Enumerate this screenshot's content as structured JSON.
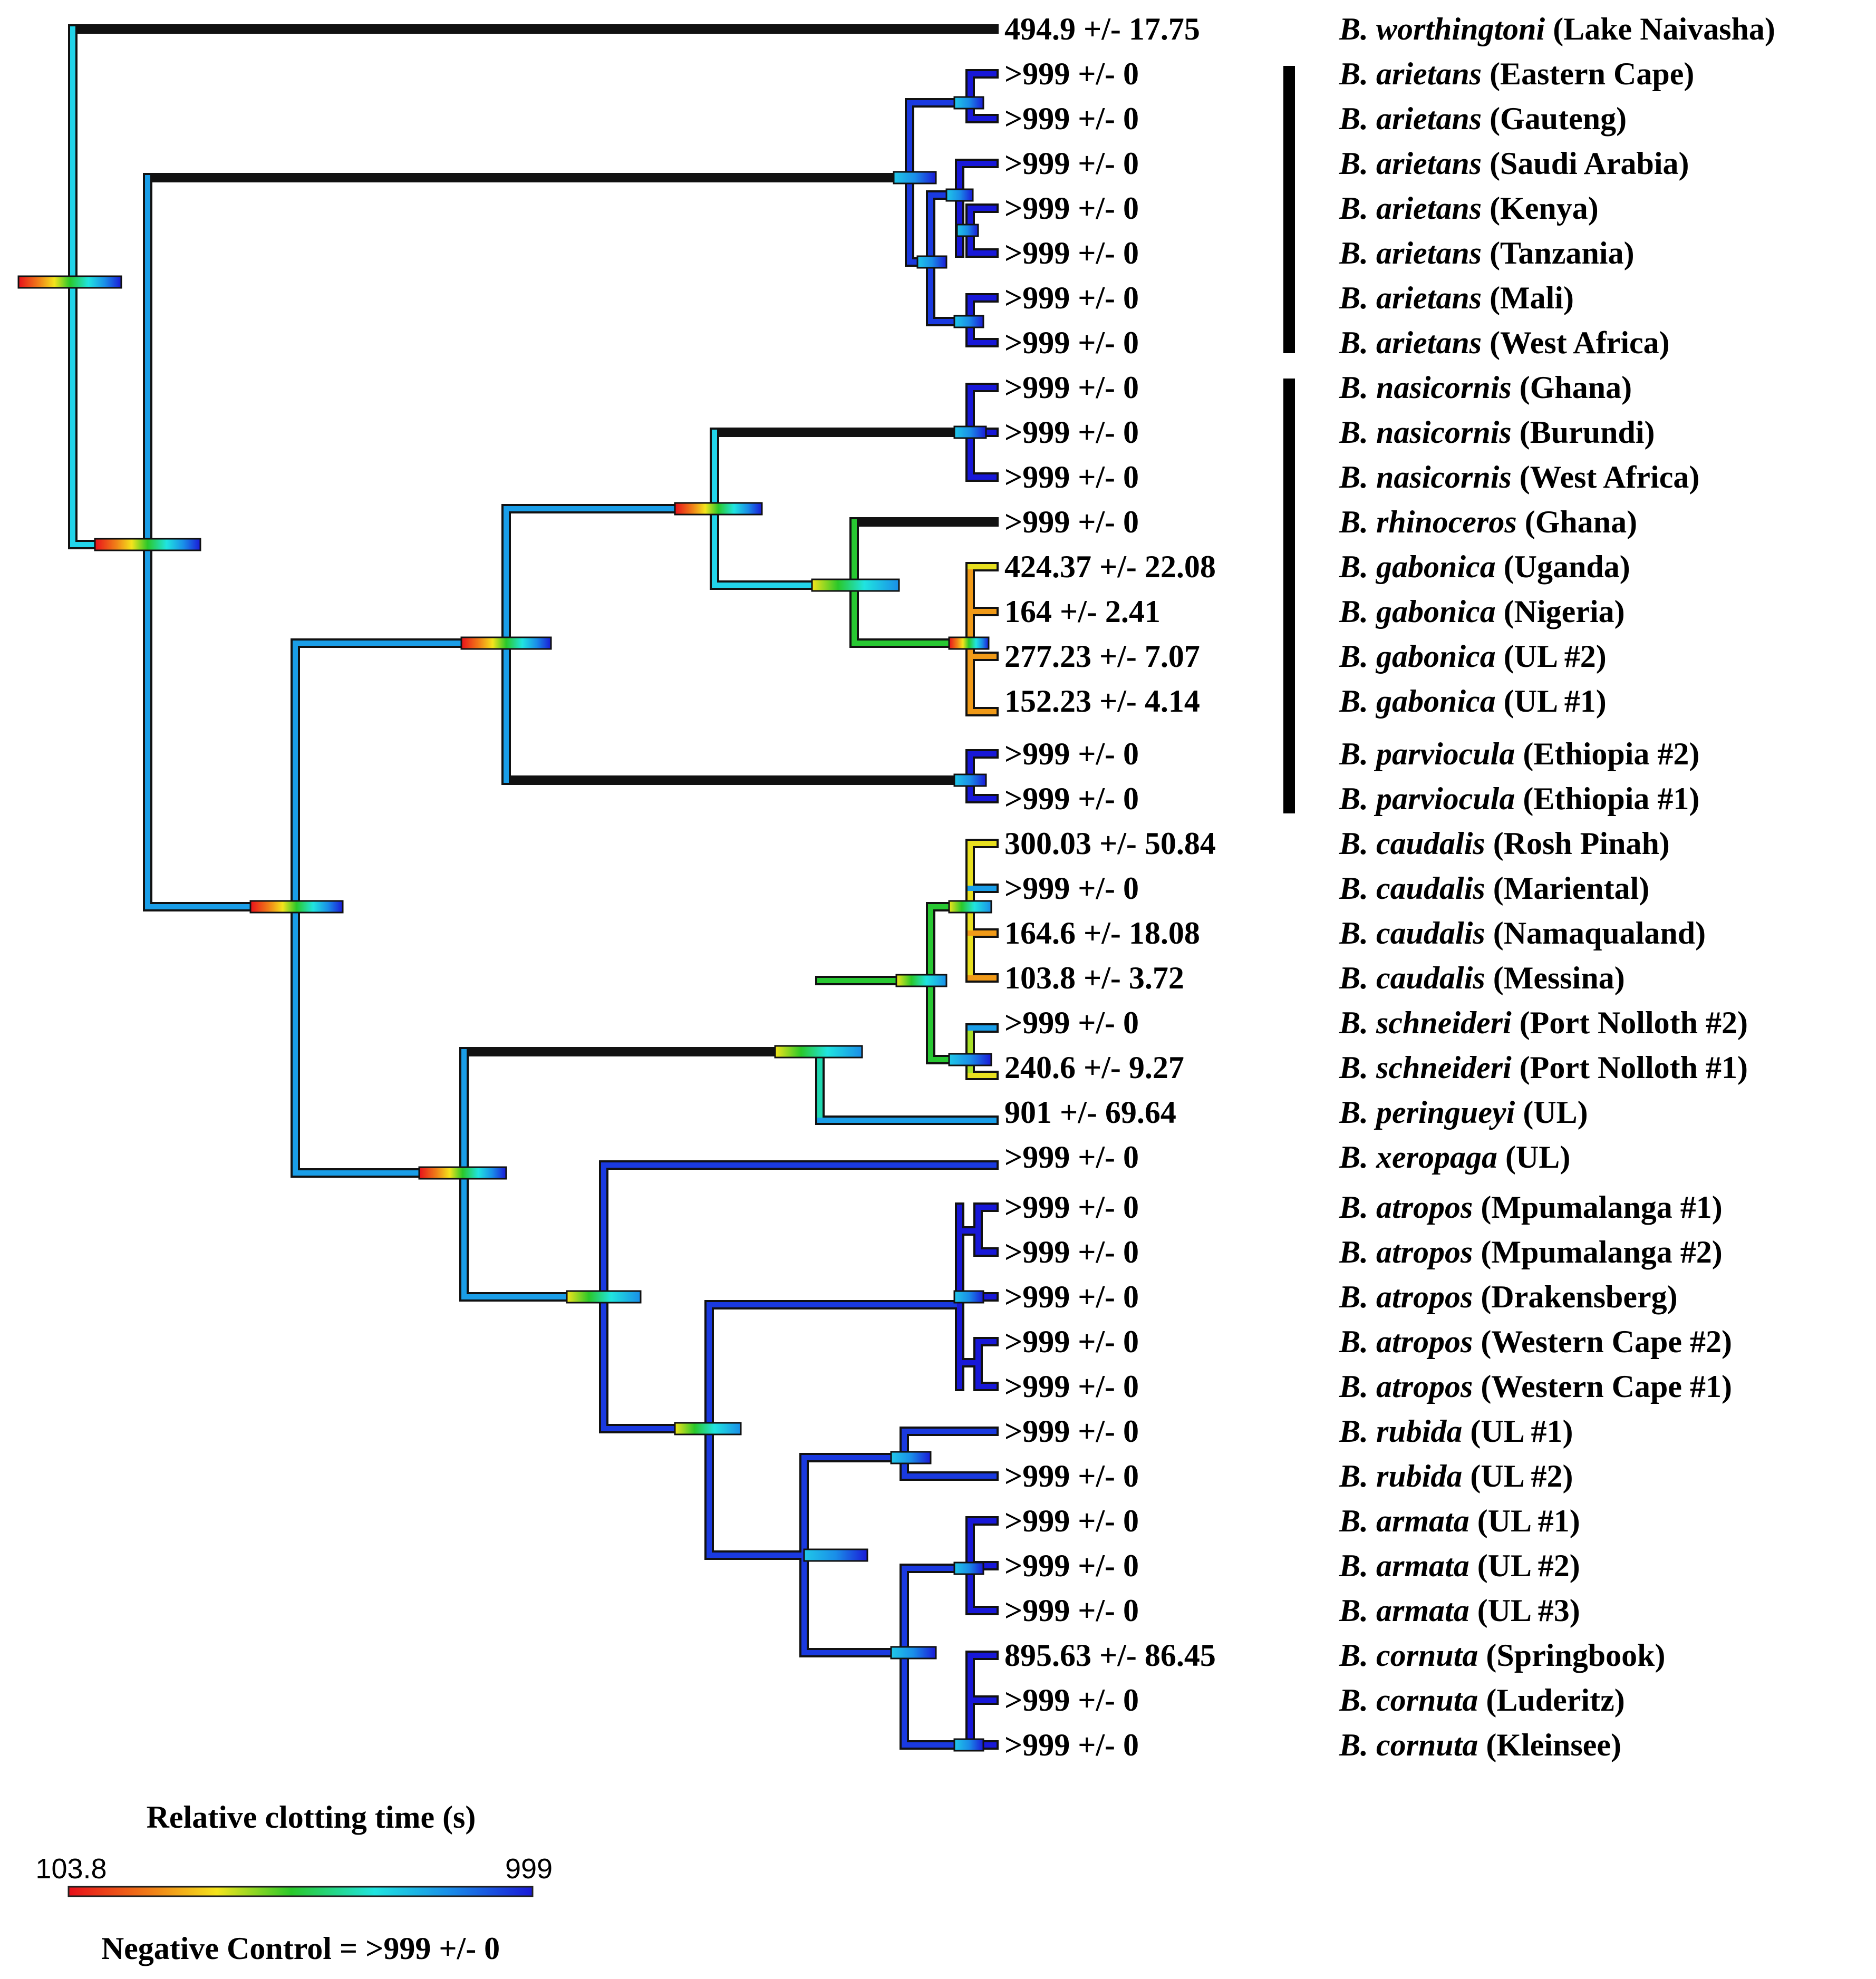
{
  "legend": {
    "title": "Relative clotting time (s)",
    "min_label": "103.8",
    "max_label": "999",
    "footer": "Negative Control = >999 +/- 0",
    "gradient_colors": [
      "#e8101a",
      "#f08018",
      "#f4e41c",
      "#2ac82a",
      "#20e4e0",
      "#1a8ee8",
      "#1a1ad8"
    ]
  },
  "tips": [
    {
      "value": "494.9 +/- 17.75",
      "genus": "B. worthingtoni",
      "locality": "(Lake Naivasha)"
    },
    {
      "value": ">999 +/- 0",
      "genus": "B. arietans",
      "locality": "(Eastern Cape)"
    },
    {
      "value": ">999 +/- 0",
      "genus": "B. arietans",
      "locality": "(Gauteng)"
    },
    {
      "value": ">999 +/- 0",
      "genus": "B. arietans",
      "locality": "(Saudi Arabia)"
    },
    {
      "value": ">999 +/- 0",
      "genus": "B. arietans",
      "locality": "(Kenya)"
    },
    {
      "value": ">999 +/- 0",
      "genus": "B. arietans",
      "locality": "(Tanzania)"
    },
    {
      "value": ">999 +/- 0",
      "genus": "B. arietans",
      "locality": "(Mali)"
    },
    {
      "value": ">999 +/- 0",
      "genus": "B. arietans",
      "locality": "(West Africa)"
    },
    {
      "value": ">999 +/- 0",
      "genus": "B. nasicornis",
      "locality": "(Ghana)"
    },
    {
      "value": ">999 +/- 0",
      "genus": "B. nasicornis",
      "locality": "(Burundi)"
    },
    {
      "value": ">999 +/- 0",
      "genus": "B. nasicornis",
      "locality": "(West Africa)"
    },
    {
      "value": ">999 +/- 0",
      "genus": "B. rhinoceros",
      "locality": "(Ghana)"
    },
    {
      "value": "424.37 +/- 22.08",
      "genus": "B. gabonica",
      "locality": "(Uganda)"
    },
    {
      "value": "164 +/- 2.41",
      "genus": "B. gabonica",
      "locality": "(Nigeria)"
    },
    {
      "value": "277.23 +/- 7.07",
      "genus": "B. gabonica",
      "locality": "(UL #2)"
    },
    {
      "value": "152.23 +/- 4.14",
      "genus": "B. gabonica",
      "locality": "(UL #1)"
    },
    {
      "value": ">999 +/- 0",
      "genus": "B. parviocula",
      "locality": "(Ethiopia #2)"
    },
    {
      "value": ">999 +/- 0",
      "genus": "B. parviocula",
      "locality": "(Ethiopia #1)"
    },
    {
      "value": "300.03 +/- 50.84",
      "genus": "B. caudalis",
      "locality": "(Rosh Pinah)"
    },
    {
      "value": ">999 +/- 0",
      "genus": "B. caudalis",
      "locality": "(Mariental)"
    },
    {
      "value": "164.6 +/- 18.08",
      "genus": "B. caudalis",
      "locality": "(Namaqualand)"
    },
    {
      "value": "103.8 +/- 3.72",
      "genus": "B. caudalis",
      "locality": "(Messina)"
    },
    {
      "value": ">999 +/- 0",
      "genus": "B. schneideri",
      "locality": "(Port Nolloth #2)"
    },
    {
      "value": "240.6 +/- 9.27",
      "genus": "B. schneideri",
      "locality": "(Port Nolloth #1)"
    },
    {
      "value": "901 +/- 69.64",
      "genus": "B. peringueyi",
      "locality": "(UL)"
    },
    {
      "value": ">999 +/- 0",
      "genus": "B. xeropaga",
      "locality": "(UL)"
    },
    {
      "value": ">999 +/- 0",
      "genus": "B. atropos",
      "locality": "(Mpumalanga #1)"
    },
    {
      "value": ">999 +/- 0",
      "genus": "B. atropos",
      "locality": "(Mpumalanga #2)"
    },
    {
      "value": ">999 +/- 0",
      "genus": "B. atropos",
      "locality": "(Drakensberg)"
    },
    {
      "value": ">999 +/- 0",
      "genus": "B. atropos",
      "locality": "(Western Cape #2)"
    },
    {
      "value": ">999 +/- 0",
      "genus": "B. atropos",
      "locality": "(Western Cape #1)"
    },
    {
      "value": ">999 +/- 0",
      "genus": "B. rubida",
      "locality": "(UL #1)"
    },
    {
      "value": ">999 +/- 0",
      "genus": "B. rubida",
      "locality": "(UL #2)"
    },
    {
      "value": ">999 +/- 0",
      "genus": "B. armata",
      "locality": "(UL #1)"
    },
    {
      "value": ">999 +/- 0",
      "genus": "B. armata",
      "locality": "(UL #2)"
    },
    {
      "value": ">999 +/- 0",
      "genus": "B. armata",
      "locality": "(UL #3)"
    },
    {
      "value": "895.63 +/- 86.45",
      "genus": "B. cornuta",
      "locality": "(Springbook)"
    },
    {
      "value": ">999 +/- 0",
      "genus": "B. cornuta",
      "locality": "(Luderitz)"
    },
    {
      "value": ">999 +/- 0",
      "genus": "B. cornuta",
      "locality": "(Kleinsee)"
    }
  ]
}
